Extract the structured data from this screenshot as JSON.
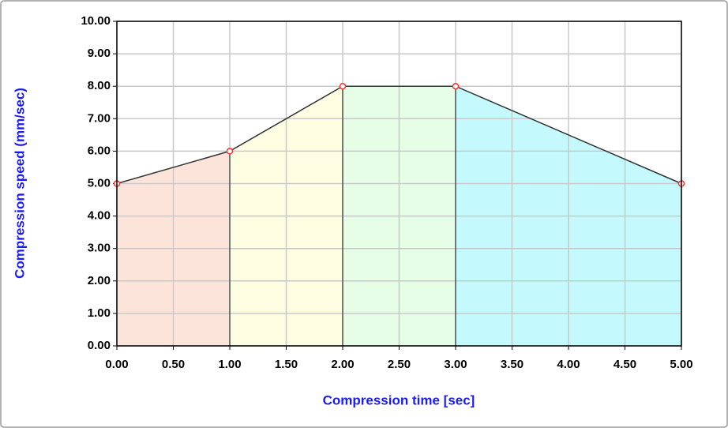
{
  "chart_data": {
    "type": "line",
    "x_label": "Compression time [sec]",
    "y_label": "Compression speed (mm/sec)",
    "x": [
      0,
      1,
      2,
      3,
      5
    ],
    "values": [
      5,
      6,
      8,
      8,
      5
    ],
    "color": "#333333",
    "marker_color": "#ff3030",
    "segment_colors": [
      "#fce4da",
      "#fdfde2",
      "#e6fde6",
      "#c4fafd"
    ],
    "xlim": [
      0,
      5
    ],
    "ylim": [
      0,
      10
    ],
    "xticks": [
      {
        "value": 0,
        "label": "0.00"
      },
      {
        "value": 0.5,
        "label": "0.50"
      },
      {
        "value": 1,
        "label": "1.00"
      },
      {
        "value": 1.5,
        "label": "1.50"
      },
      {
        "value": 2,
        "label": "2.00"
      },
      {
        "value": 2.5,
        "label": "2.50"
      },
      {
        "value": 3,
        "label": "3.00"
      },
      {
        "value": 3.5,
        "label": "3.50"
      },
      {
        "value": 4,
        "label": "4.00"
      },
      {
        "value": 4.5,
        "label": "4.50"
      },
      {
        "value": 5,
        "label": "5.00"
      }
    ],
    "yticks": [
      {
        "value": 0,
        "label": "0.00"
      },
      {
        "value": 1,
        "label": "1.00"
      },
      {
        "value": 2,
        "label": "2.00"
      },
      {
        "value": 3,
        "label": "3.00"
      },
      {
        "value": 4,
        "label": "4.00"
      },
      {
        "value": 5,
        "label": "5.00"
      },
      {
        "value": 6,
        "label": "6.00"
      },
      {
        "value": 7,
        "label": "7.00"
      },
      {
        "value": 8,
        "label": "8.00"
      },
      {
        "value": 9,
        "label": "9.00"
      },
      {
        "value": 10,
        "label": "10.00"
      }
    ],
    "grid": true
  }
}
